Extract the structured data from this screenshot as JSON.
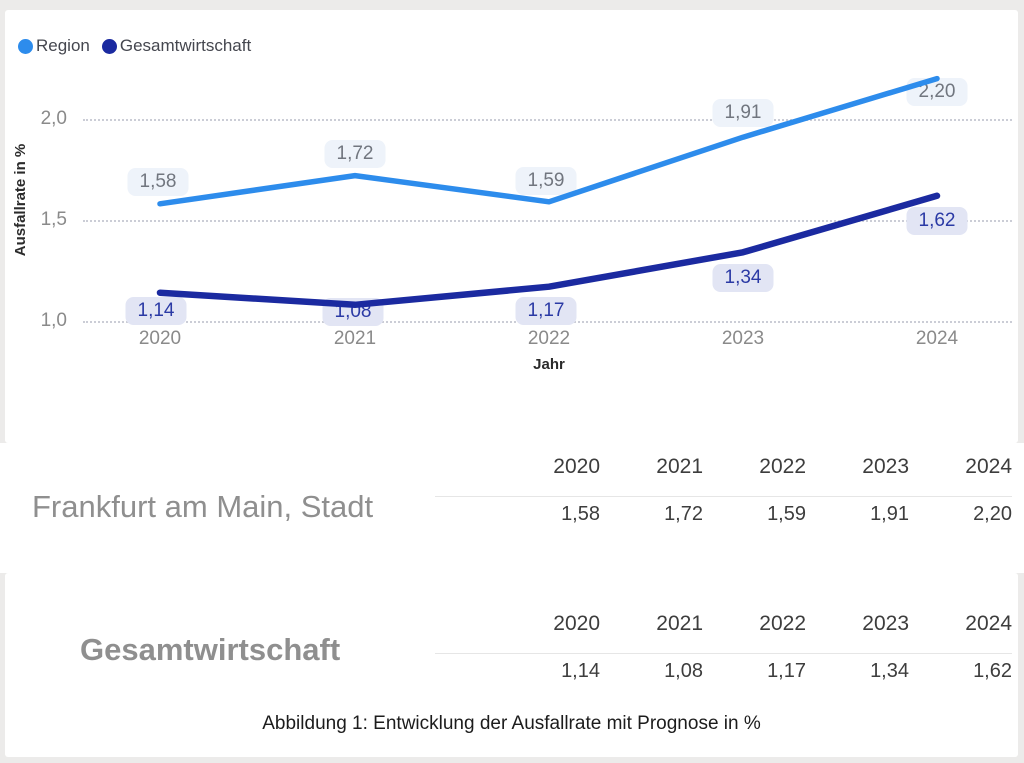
{
  "chart": {
    "legend": [
      "Region",
      "Gesamtwirtschaft"
    ],
    "y_axis_title": "Ausfallrate in %",
    "x_axis_title": "Jahr",
    "y_ticks": [
      "2,0",
      "1,5",
      "1,0"
    ],
    "x_ticks": [
      "2020",
      "2021",
      "2022",
      "2023",
      "2024"
    ]
  },
  "chart_data": {
    "type": "line",
    "title": "",
    "xlabel": "Jahr",
    "ylabel": "Ausfallrate in %",
    "x": [
      2020,
      2021,
      2022,
      2023,
      2024
    ],
    "ylim": [
      1.0,
      2.3
    ],
    "grid": "horizontal dotted at 1.0, 1.5, 2.0",
    "legend_position": "top-left",
    "series": [
      {
        "name": "Region",
        "color": "#2D8CEC",
        "values": [
          1.58,
          1.72,
          1.59,
          1.91,
          2.2
        ],
        "labels": [
          "1,58",
          "1,72",
          "1,59",
          "1,91",
          "2,20"
        ],
        "label_bg": "#EEF3FA",
        "label_fg": "#71767F"
      },
      {
        "name": "Gesamtwirtschaft",
        "color": "#1B2AA0",
        "values": [
          1.14,
          1.08,
          1.17,
          1.34,
          1.62
        ],
        "labels": [
          "1,14",
          "1,08",
          "1,17",
          "1,34",
          "1,62"
        ],
        "label_bg": "#E2E5F4",
        "label_fg": "#2B3AA5"
      }
    ]
  },
  "tables": [
    {
      "label": "Frankfurt am Main, Stadt",
      "years": [
        "2020",
        "2021",
        "2022",
        "2023",
        "2024"
      ],
      "values": [
        "1,58",
        "1,72",
        "1,59",
        "1,91",
        "2,20"
      ]
    },
    {
      "label": "Gesamtwirtschaft",
      "years": [
        "2020",
        "2021",
        "2022",
        "2023",
        "2024"
      ],
      "values": [
        "1,14",
        "1,08",
        "1,17",
        "1,34",
        "1,62"
      ]
    }
  ],
  "caption": "Abbildung 1: Entwicklung der Ausfallrate mit Prognose in %"
}
